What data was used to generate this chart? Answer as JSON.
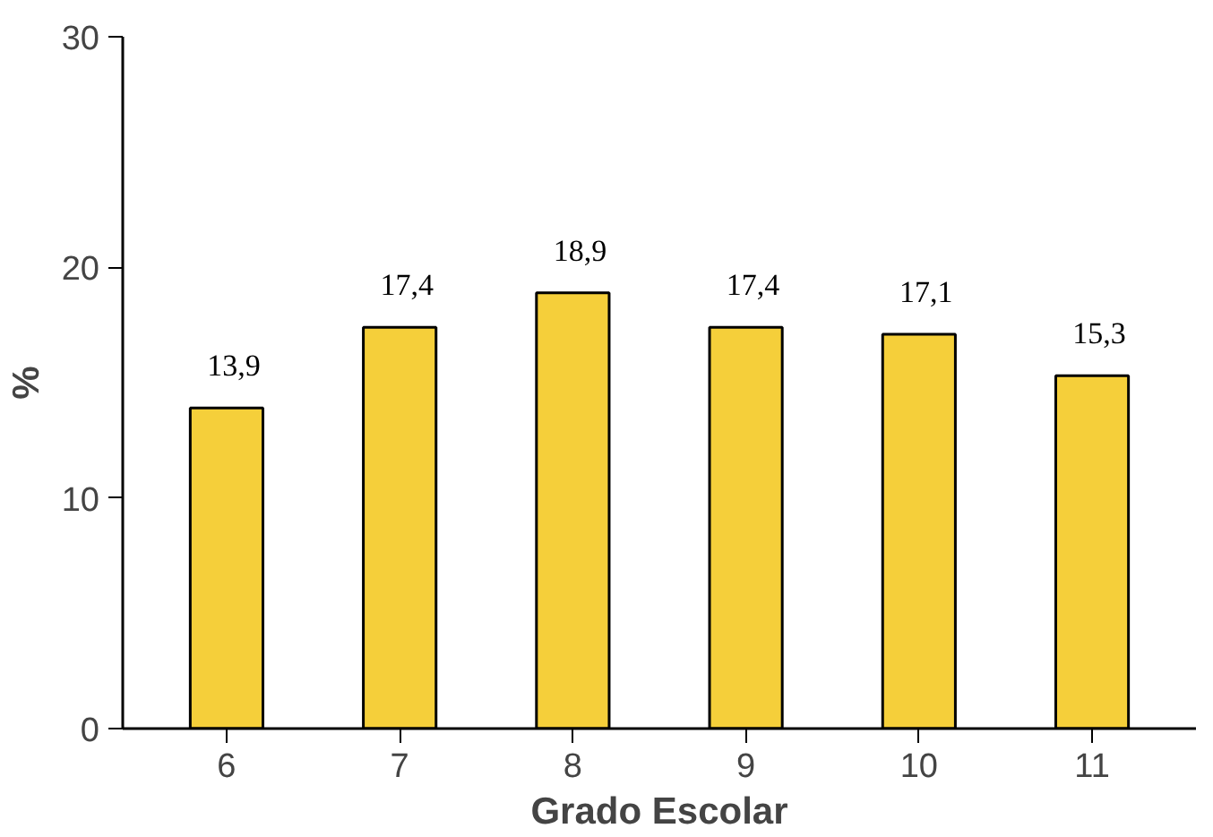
{
  "chart_data": {
    "type": "bar",
    "xlabel": "Grado Escolar",
    "ylabel": "%",
    "categories": [
      "6",
      "7",
      "8",
      "9",
      "10",
      "11"
    ],
    "values": [
      13.9,
      17.4,
      18.9,
      17.4,
      17.1,
      15.3
    ],
    "value_labels": [
      "13,9",
      "17,4",
      "18,9",
      "17,4",
      "17,1",
      "15,3"
    ],
    "color": "#f5cf3a",
    "ylim": [
      0,
      30
    ],
    "yticks": [
      0,
      10,
      20,
      30
    ],
    "grid": false
  }
}
